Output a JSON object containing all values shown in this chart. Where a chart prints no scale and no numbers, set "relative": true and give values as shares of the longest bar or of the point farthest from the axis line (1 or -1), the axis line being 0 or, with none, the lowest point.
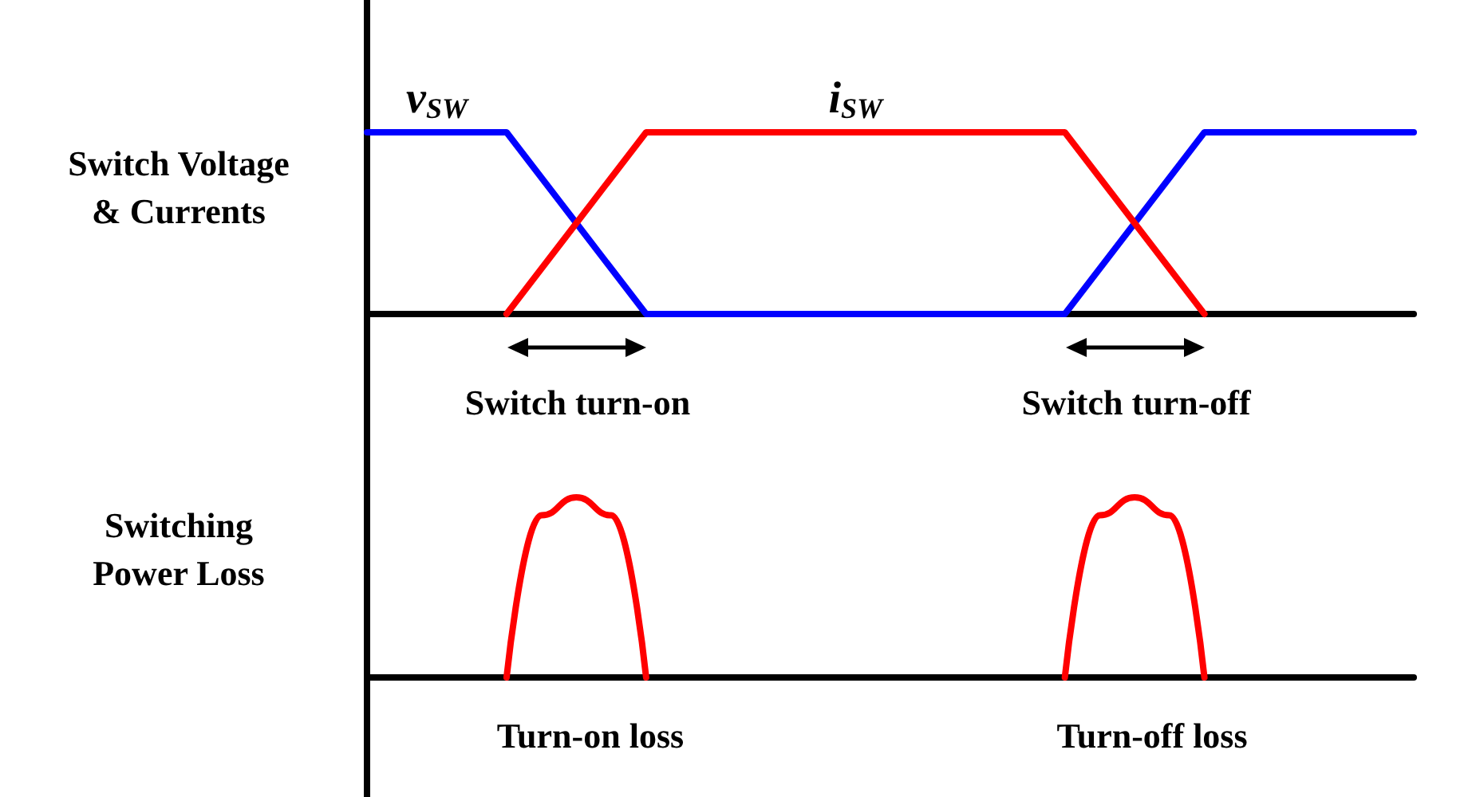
{
  "chart_data": [
    {
      "type": "line",
      "relative": true,
      "ylabel": "Switch Voltage\n& Currents",
      "legend": false,
      "grid": false,
      "categories": [
        null,
        null,
        null,
        null,
        null,
        null,
        null,
        null,
        null,
        null,
        null,
        null,
        null,
        null,
        null,
        null,
        null,
        null,
        null,
        null,
        null,
        null,
        null,
        null,
        null,
        null,
        null,
        null,
        null,
        null,
        null
      ],
      "series": [
        {
          "name": "v$_{SW}$",
          "color": "#0000ff",
          "values": [
            1,
            1,
            1,
            1,
            1,
            0.75,
            0.5,
            0.25,
            0,
            0,
            0,
            0,
            0,
            0,
            0,
            0,
            0,
            0,
            0,
            0,
            0,
            0.25,
            0.5,
            0.75,
            1,
            1,
            1,
            1,
            1,
            1,
            1
          ]
        },
        {
          "name": "i$_{SW}$",
          "color": "#ff0000",
          "values": [
            null,
            null,
            null,
            null,
            0,
            0.25,
            0.5,
            0.75,
            1,
            1,
            1,
            1,
            1,
            1,
            1,
            1,
            1,
            1,
            1,
            1,
            1,
            0.75,
            0.5,
            0.25,
            0,
            null,
            null,
            null,
            null,
            null,
            null
          ]
        }
      ],
      "annotations": [
        "Switch turn-on",
        "Switch turn-off"
      ]
    },
    {
      "type": "line",
      "relative": true,
      "ylabel": "Switching\nPower Loss",
      "legend": false,
      "grid": false,
      "categories": [
        null,
        null,
        null,
        null,
        null,
        null,
        null,
        null,
        null,
        null,
        null,
        null,
        null,
        null,
        null,
        null,
        null,
        null,
        null,
        null,
        null,
        null,
        null,
        null,
        null,
        null,
        null,
        null,
        null,
        null,
        null
      ],
      "series": [
        {
          "color": "#ff0000",
          "values": [
            null,
            null,
            null,
            null,
            0,
            0.9,
            1,
            0.9,
            0,
            null,
            null,
            null,
            null,
            null,
            null,
            null,
            null,
            null,
            null,
            null,
            0,
            0.9,
            1,
            0.9,
            0,
            null,
            null,
            null,
            null,
            null,
            null
          ]
        }
      ],
      "annotations": [
        "Turn-on loss",
        "Turn-off loss"
      ]
    }
  ]
}
